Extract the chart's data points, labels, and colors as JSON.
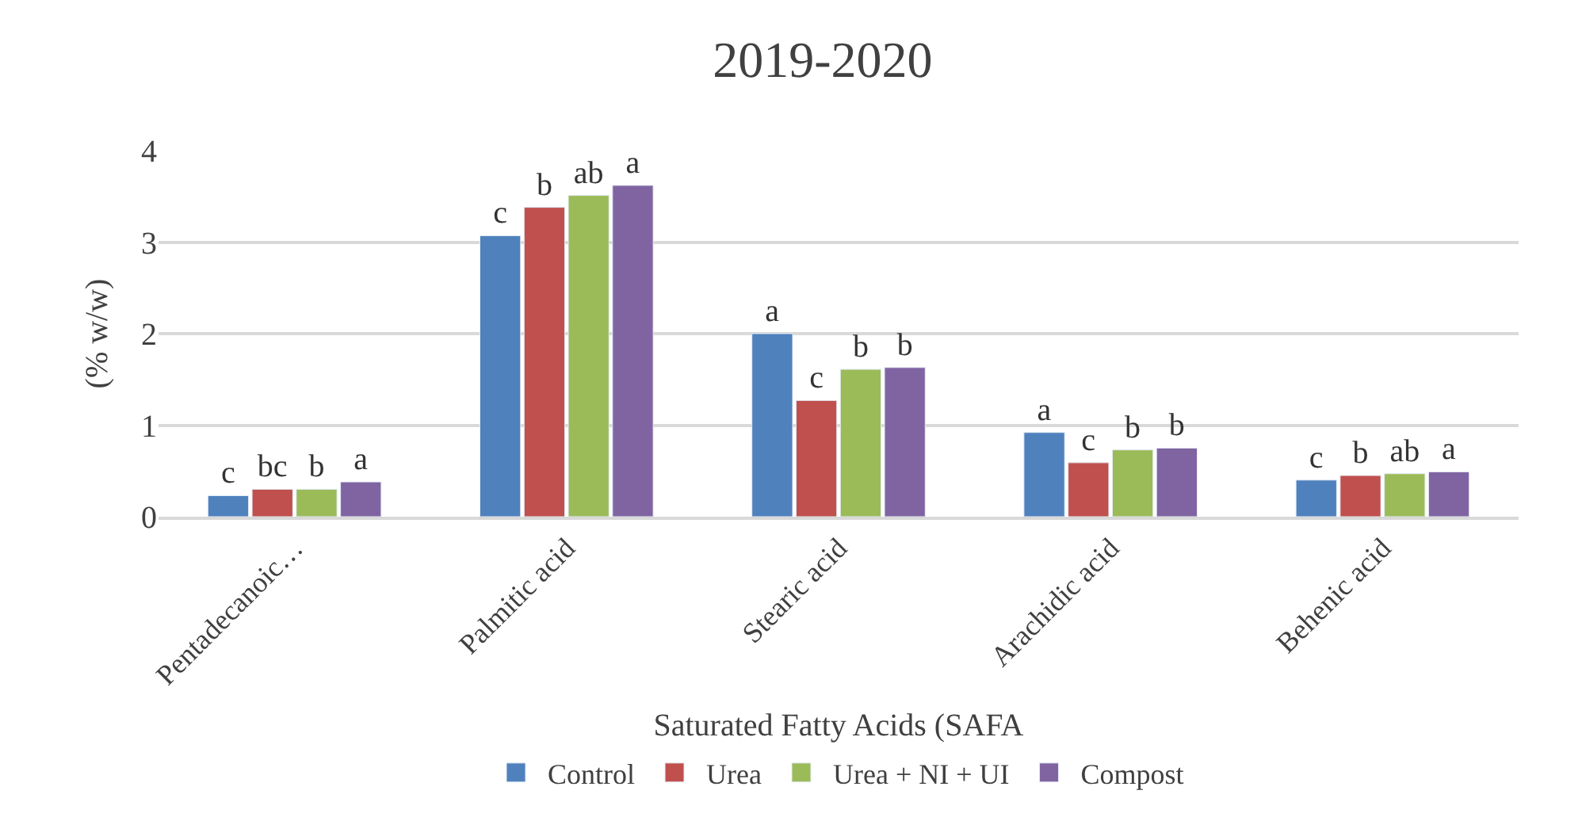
{
  "chart_data": {
    "type": "bar",
    "title": "2019-2020",
    "xlabel": "Saturated Fatty Acids (SAFA",
    "ylabel": "(% w/w)",
    "categories": [
      "Pentadecanoic…",
      "Palmitic acid",
      "Stearic acid",
      "Arachidic acid",
      "Behenic acid"
    ],
    "series": [
      {
        "name": "Control",
        "color": "#4f81bd",
        "values": [
          0.23,
          3.07,
          2.0,
          0.92,
          0.4
        ],
        "value_labels": [
          "c",
          "c",
          "a",
          "a",
          "c"
        ]
      },
      {
        "name": "Urea",
        "color": "#c0504d",
        "values": [
          0.3,
          3.38,
          1.27,
          0.59,
          0.45
        ],
        "value_labels": [
          "bc",
          "b",
          "c",
          "c",
          "b"
        ]
      },
      {
        "name": "Urea + NI + UI",
        "color": "#9bbb59",
        "values": [
          0.3,
          3.51,
          1.61,
          0.73,
          0.47
        ],
        "value_labels": [
          "b",
          "ab",
          "b",
          "b",
          "ab"
        ]
      },
      {
        "name": "Compost",
        "color": "#8064a2",
        "values": [
          0.38,
          3.62,
          1.63,
          0.75,
          0.49
        ],
        "value_labels": [
          "a",
          "a",
          "b",
          "b",
          "a"
        ]
      }
    ],
    "ylim": [
      0,
      4
    ],
    "yticks": [
      0,
      1,
      2,
      3,
      4
    ],
    "grid": "y",
    "legend": "bottom"
  }
}
